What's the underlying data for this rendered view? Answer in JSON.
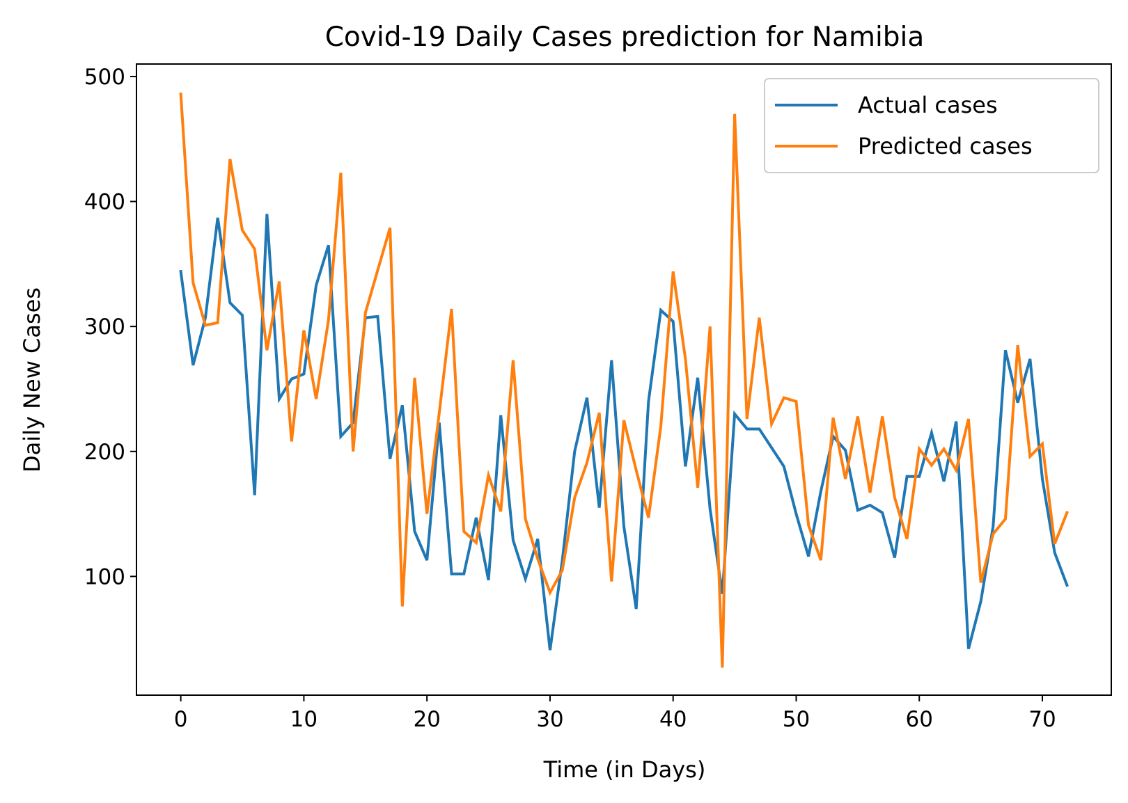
{
  "chart_data": {
    "type": "line",
    "title": "Covid-19 Daily Cases prediction for Namibia",
    "xlabel": "Time (in Days)",
    "ylabel": "Daily New Cases",
    "xlim": [
      -3.6,
      75.6
    ],
    "ylim": [
      5,
      510
    ],
    "xticks": [
      0,
      10,
      20,
      30,
      40,
      50,
      60,
      70
    ],
    "yticks": [
      100,
      200,
      300,
      400,
      500
    ],
    "grid": false,
    "legend_position": "top-right",
    "x": [
      0,
      1,
      2,
      3,
      4,
      5,
      6,
      7,
      8,
      9,
      10,
      11,
      12,
      13,
      14,
      15,
      16,
      17,
      18,
      19,
      20,
      21,
      22,
      23,
      24,
      25,
      26,
      27,
      28,
      29,
      30,
      31,
      32,
      33,
      34,
      35,
      36,
      37,
      38,
      39,
      40,
      41,
      42,
      43,
      44,
      45,
      46,
      47,
      48,
      49,
      50,
      51,
      52,
      53,
      54,
      55,
      56,
      57,
      58,
      59,
      60,
      61,
      62,
      63,
      64,
      65,
      66,
      67,
      68,
      69,
      70,
      71,
      72
    ],
    "series": [
      {
        "name": "Actual cases",
        "color": "#1f77b4",
        "values": [
          344,
          269,
          307,
          387,
          319,
          309,
          165,
          390,
          242,
          258,
          262,
          333,
          365,
          212,
          223,
          307,
          308,
          194,
          237,
          136,
          113,
          223,
          102,
          102,
          147,
          97,
          229,
          129,
          98,
          130,
          41,
          113,
          200,
          243,
          155,
          273,
          140,
          74,
          240,
          313,
          304,
          188,
          259,
          154,
          86,
          230,
          218,
          218,
          203,
          188,
          150,
          116,
          168,
          212,
          201,
          153,
          157,
          151,
          115,
          180,
          180,
          215,
          176,
          224,
          42,
          80,
          140,
          281,
          239,
          274,
          178,
          119,
          93
        ]
      },
      {
        "name": "Predicted cases",
        "color": "#ff7f0e",
        "values": [
          486,
          335,
          301,
          303,
          434,
          377,
          362,
          281,
          336,
          208,
          297,
          242,
          305,
          423,
          200,
          311,
          345,
          379,
          76,
          259,
          150,
          231,
          314,
          136,
          127,
          181,
          152,
          273,
          146,
          114,
          87,
          105,
          163,
          191,
          231,
          96,
          225,
          185,
          147,
          220,
          344,
          274,
          171,
          300,
          27,
          470,
          226,
          307,
          222,
          243,
          240,
          141,
          113,
          227,
          178,
          228,
          167,
          228,
          163,
          130,
          202,
          189,
          202,
          185,
          226,
          95,
          134,
          146,
          285,
          196,
          206,
          126,
          151
        ]
      }
    ]
  }
}
